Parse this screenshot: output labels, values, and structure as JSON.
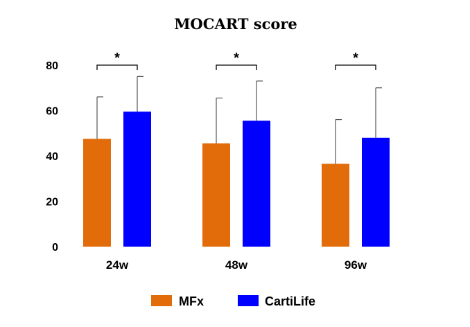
{
  "chart_data": {
    "type": "bar",
    "title": "MOCART score",
    "xlabel": "",
    "ylabel": "",
    "categories": [
      "24w",
      "48w",
      "96w"
    ],
    "ylim": [
      0,
      80
    ],
    "yticks": [
      0,
      20,
      40,
      60,
      80
    ],
    "grid": false,
    "legend": "bottom",
    "series": [
      {
        "name": "MFx",
        "color": "#E36C0A",
        "values": [
          47.5,
          45.5,
          36.5
        ],
        "error_upper": [
          66,
          65.5,
          56
        ]
      },
      {
        "name": "CartiLife",
        "color": "#0000FF",
        "values": [
          59.5,
          55.5,
          48
        ],
        "error_upper": [
          75,
          73,
          70
        ]
      }
    ],
    "annotations": [
      {
        "category": "24w",
        "text": "*"
      },
      {
        "category": "48w",
        "text": "*"
      },
      {
        "category": "96w",
        "text": "*"
      }
    ]
  }
}
